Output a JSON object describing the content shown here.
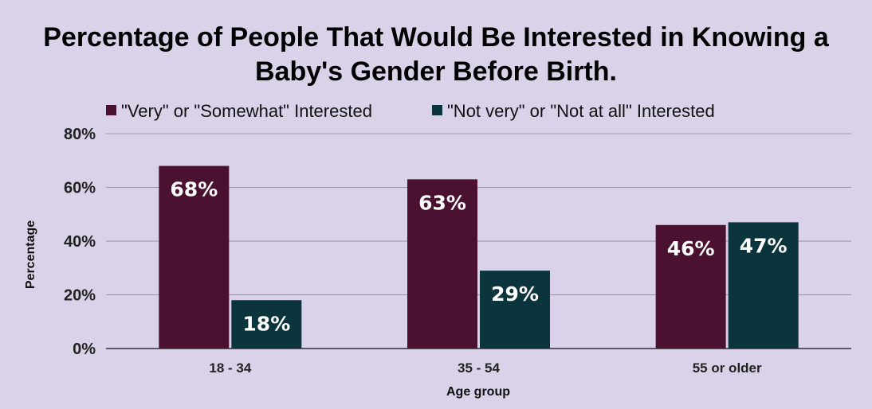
{
  "chart_data": {
    "type": "bar",
    "title_lines": [
      "Percentage of People That Would Be Interested in Knowing a",
      "Baby's Gender Before Birth."
    ],
    "xlabel": "Age group",
    "ylabel": "Percentage",
    "categories": [
      "18 - 34",
      "35 - 54",
      "55 or older"
    ],
    "series": [
      {
        "name": "\"Very\" or \"Somewhat\" Interested",
        "values": [
          68,
          63,
          46
        ],
        "color": "#4a1130",
        "labels": [
          "68%",
          "63%",
          "46%"
        ]
      },
      {
        "name": "\"Not very\" or \"Not at all\" Interested",
        "values": [
          18,
          29,
          47
        ],
        "color": "#0c343d",
        "labels": [
          "18%",
          "29%",
          "47%"
        ]
      }
    ],
    "ylim": [
      0,
      80
    ],
    "yticks": [
      0,
      20,
      40,
      60,
      80
    ],
    "ytick_labels": [
      "0%",
      "20%",
      "40%",
      "60%",
      "80%"
    ],
    "grid": true,
    "legend_position": "top-left"
  }
}
